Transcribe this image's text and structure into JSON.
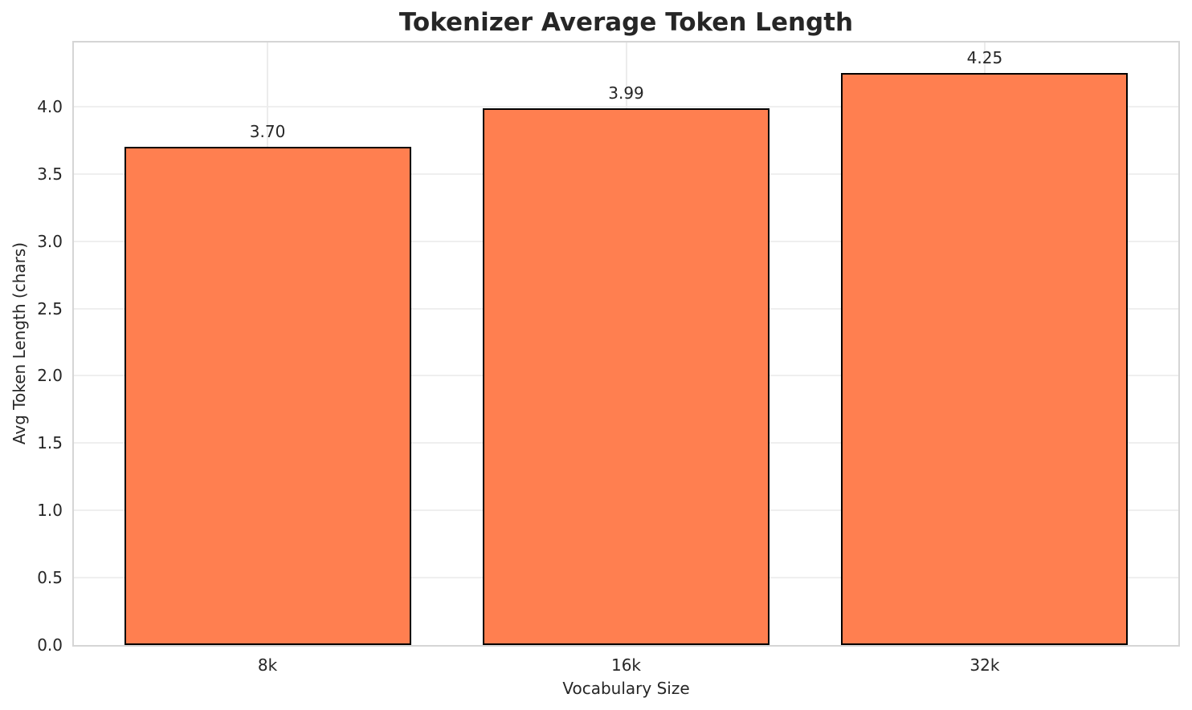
{
  "chart_data": {
    "type": "bar",
    "title": "Tokenizer Average Token Length",
    "xlabel": "Vocabulary Size",
    "ylabel": "Avg Token Length (chars)",
    "categories": [
      "8k",
      "16k",
      "32k"
    ],
    "values": [
      3.7,
      3.99,
      4.25
    ],
    "value_labels": [
      "3.70",
      "3.99",
      "4.25"
    ],
    "yticks": [
      "0.0",
      "0.5",
      "1.0",
      "1.5",
      "2.0",
      "2.5",
      "3.0",
      "3.5",
      "4.0"
    ],
    "ylim": [
      0,
      4.476
    ],
    "grid": "horizontal lines at 0.5 steps and vertical lines at category centers",
    "legend": "none",
    "bar_color": "#FF7F50",
    "bar_edge_color": "#000000"
  }
}
